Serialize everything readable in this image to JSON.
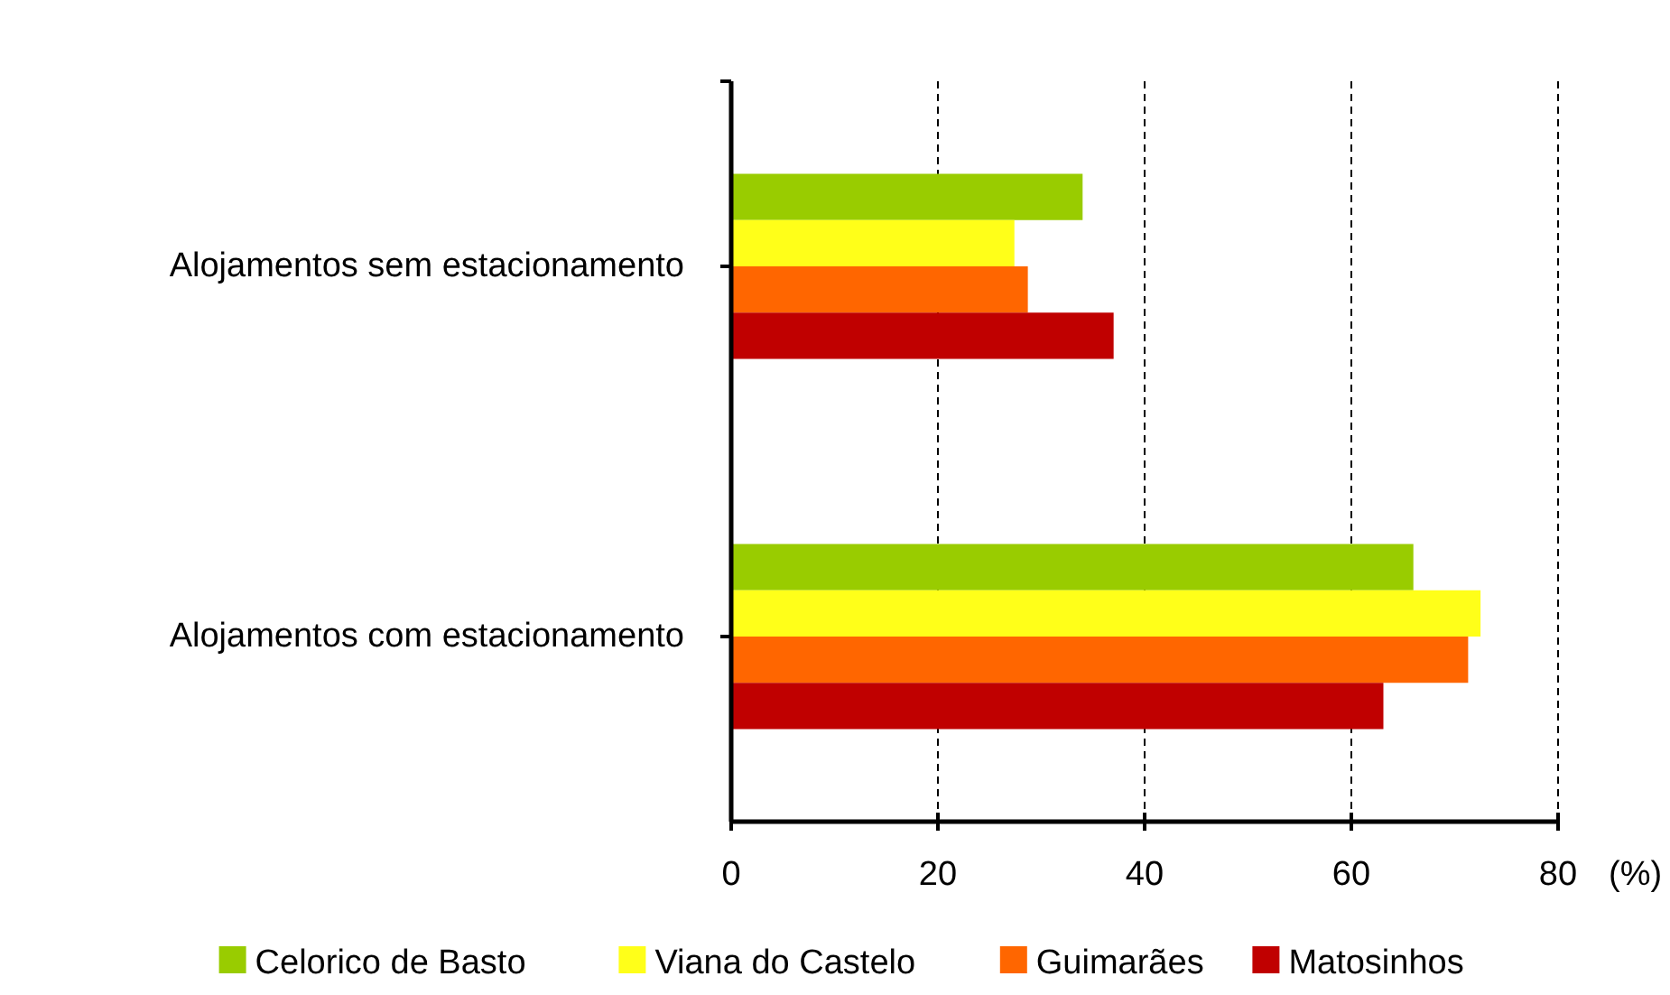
{
  "chart_data": {
    "type": "bar",
    "orientation": "horizontal",
    "xlabel": "(%)",
    "categories": [
      "Alojamentos sem estacionamento",
      "Alojamentos com estacionamento"
    ],
    "series": [
      {
        "name": "Celorico de Basto",
        "color": "#99cc00",
        "values": [
          34.0,
          66.0
        ]
      },
      {
        "name": "Viana do Castelo",
        "color": "#ffff19",
        "values": [
          27.4,
          72.5
        ]
      },
      {
        "name": "Guimarães",
        "color": "#ff6600",
        "values": [
          28.7,
          71.3
        ]
      },
      {
        "name": "Matosinhos",
        "color": "#c00000",
        "values": [
          37.0,
          63.1
        ]
      }
    ],
    "xlim": [
      0,
      80
    ],
    "xticks": [
      0,
      20,
      40,
      60,
      80
    ],
    "grid": "x",
    "legend": "bottom"
  }
}
